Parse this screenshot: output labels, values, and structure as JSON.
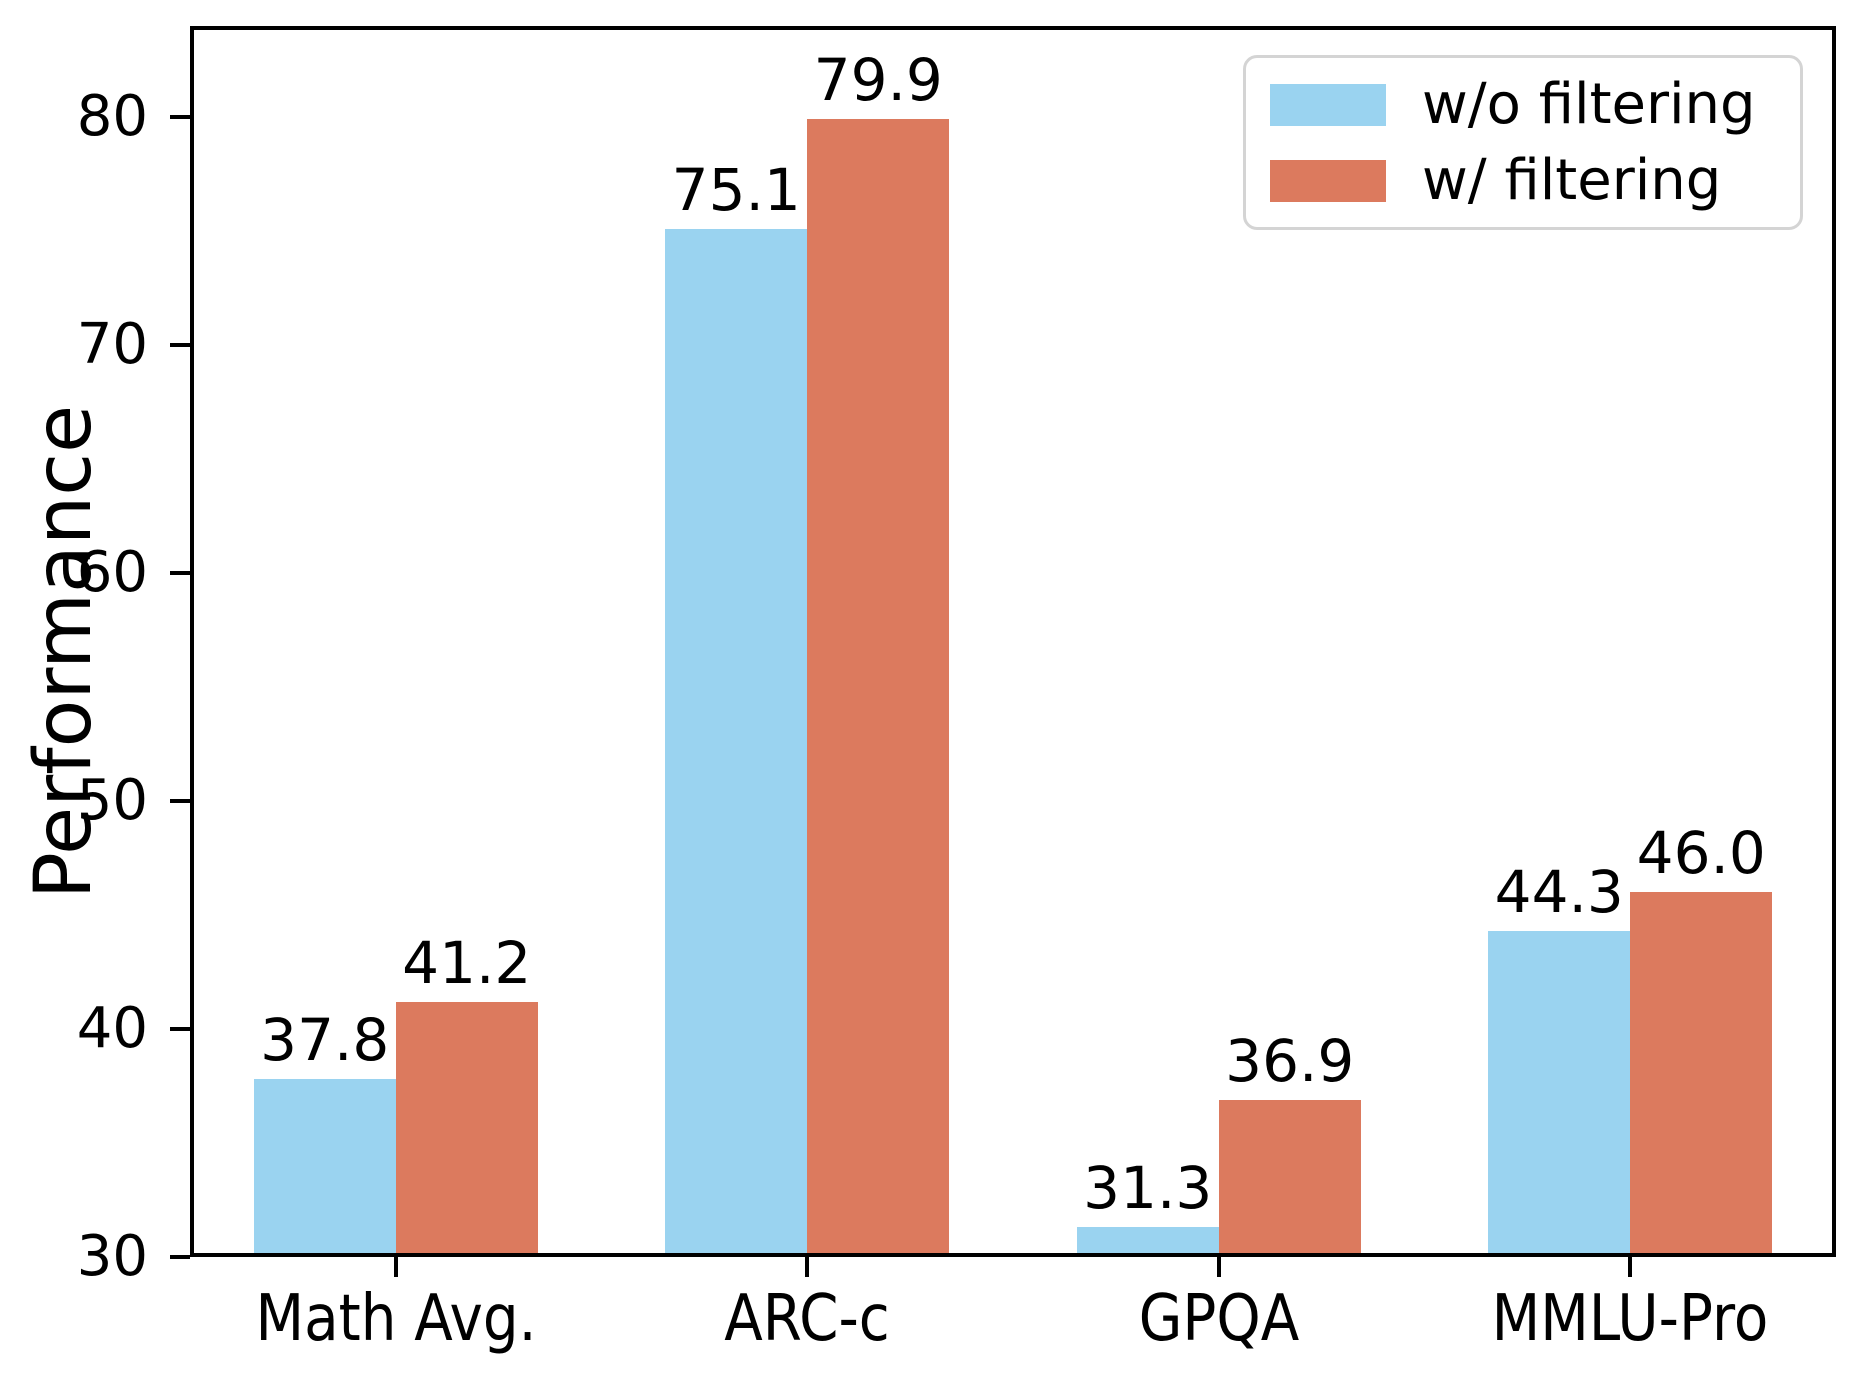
{
  "chart_data": {
    "type": "bar",
    "title": "",
    "xlabel": "",
    "ylabel": "Performance",
    "categories": [
      "Math Avg.",
      "ARC-c",
      "GPQA",
      "MMLU-Pro"
    ],
    "series": [
      {
        "name": "w/o filtering",
        "color": "#9ad3f0",
        "values": [
          37.8,
          75.1,
          31.3,
          44.3
        ]
      },
      {
        "name": "w/ filtering",
        "color": "#dc7a5e",
        "values": [
          41.2,
          79.9,
          36.9,
          46.0
        ]
      }
    ],
    "ylim": [
      30,
      84
    ],
    "yticks": [
      30,
      40,
      50,
      60,
      70,
      80
    ],
    "grid": false,
    "legend_position": "upper right",
    "bar_value_labels": true,
    "value_label_decimals": 1
  },
  "style": {
    "axis_color": "#000000",
    "text_color": "#000000",
    "legend_border_color": "#d4d4d4",
    "background_color": "#ffffff"
  }
}
